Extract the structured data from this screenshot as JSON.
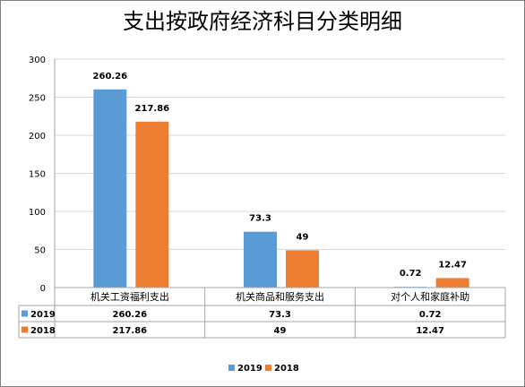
{
  "chart_data": {
    "type": "bar",
    "title": "支出按政府经济科目分类明细",
    "categories": [
      "机关工资福利支出",
      "机关商品和服务支出",
      "对个人和家庭补助"
    ],
    "series": [
      {
        "name": "2019",
        "values": [
          260.26,
          73.3,
          0.72
        ],
        "labels": [
          "260.26",
          "73.3",
          "0.72"
        ],
        "color": "#5B9BD5"
      },
      {
        "name": "2018",
        "values": [
          217.86,
          49,
          12.47
        ],
        "labels": [
          "217.86",
          "49",
          "12.47"
        ],
        "color": "#ED7D31"
      }
    ],
    "ylim": [
      0,
      300
    ],
    "yticks": [
      "0",
      "50",
      "100",
      "150",
      "200",
      "250",
      "300"
    ],
    "grid": true,
    "data_table": true,
    "legend": "bottom"
  }
}
